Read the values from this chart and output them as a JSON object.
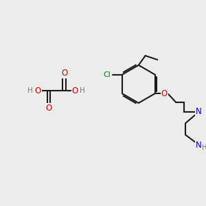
{
  "background_color": "#ececec",
  "bond_color": "#1a1a1a",
  "atom_colors": {
    "O": "#cc0000",
    "N": "#0000cc",
    "Cl": "#008800",
    "H": "#777777",
    "C": "#1a1a1a"
  },
  "figsize": [
    3.0,
    3.0
  ],
  "dpi": 100
}
